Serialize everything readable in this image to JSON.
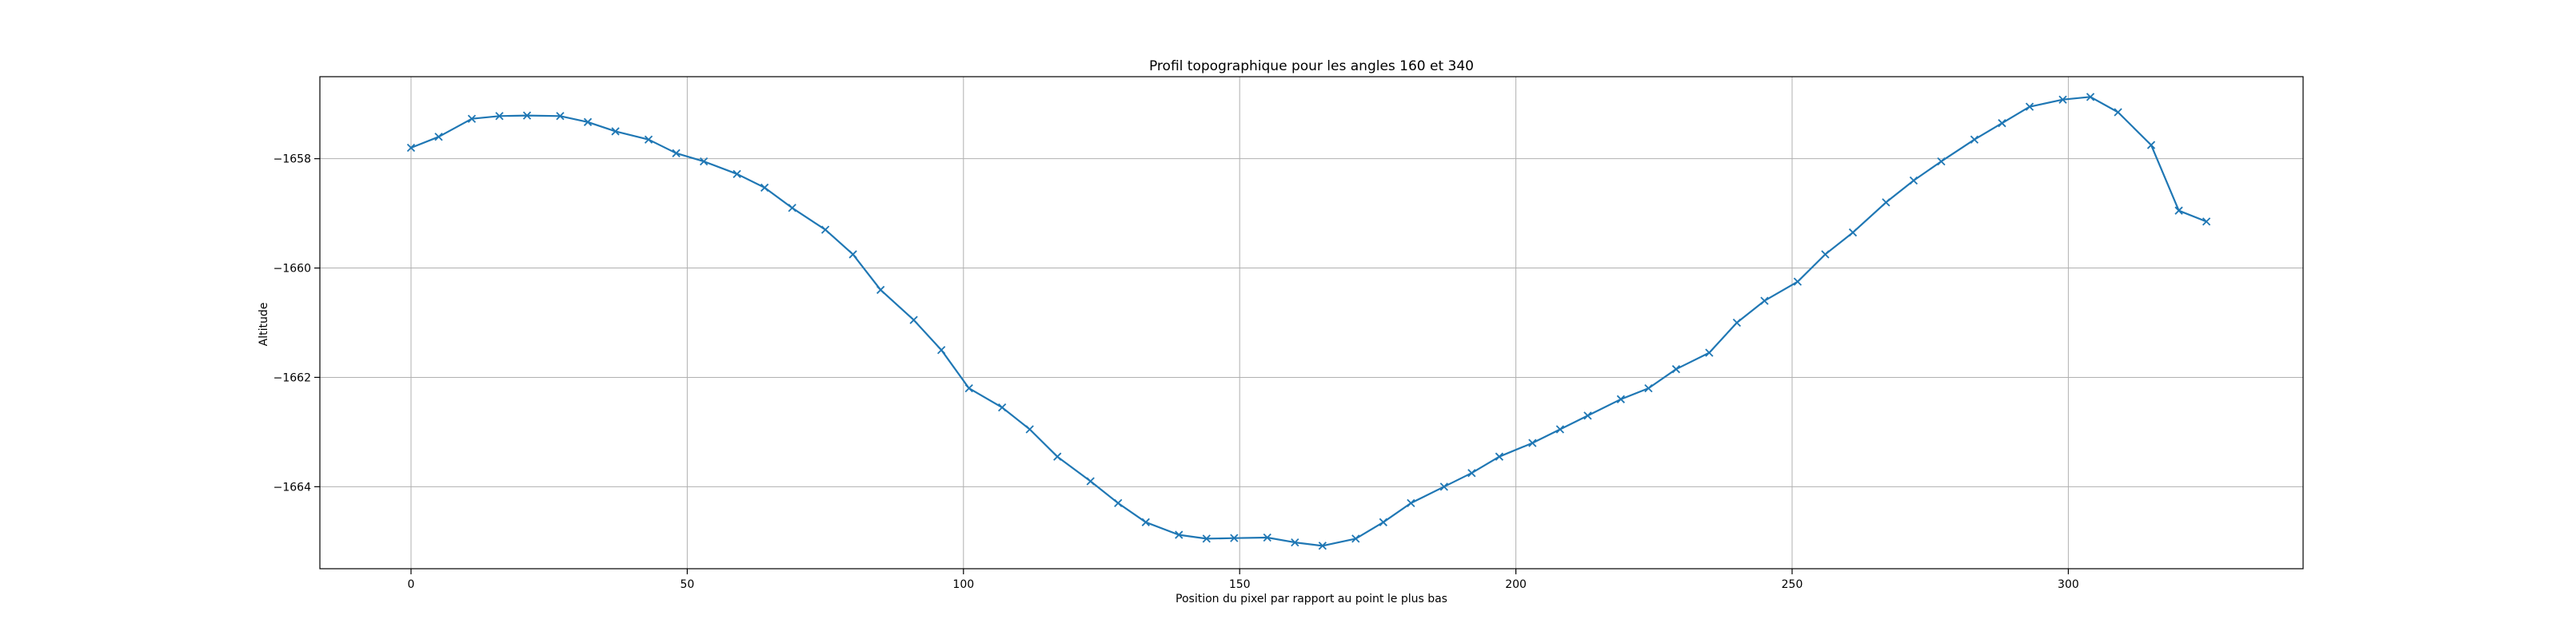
{
  "chart_data": {
    "type": "line",
    "title": "Profil topographique pour les angles 160 et 340",
    "xlabel": "Position du pixel par rapport au point le plus bas",
    "ylabel": "Altitude",
    "xlim": [
      -16.5,
      342.5
    ],
    "ylim": [
      -1665.5,
      -1656.5
    ],
    "xticks": [
      0,
      50,
      100,
      150,
      200,
      250,
      300
    ],
    "yticks": [
      -1658,
      -1660,
      -1662,
      -1664
    ],
    "grid": true,
    "marker": "x",
    "line_color": "#1f77b4",
    "series": [
      {
        "x": [
          0,
          5,
          11,
          16,
          21,
          27,
          32,
          37,
          43,
          48,
          53,
          59,
          64,
          69,
          75,
          80,
          85,
          91,
          96,
          101,
          107,
          112,
          117,
          123,
          128,
          133,
          139,
          144,
          149,
          155,
          160,
          165,
          171,
          176,
          181,
          187,
          192,
          197,
          203,
          208,
          213,
          219,
          224,
          229,
          235,
          240,
          245,
          251,
          256,
          261,
          267,
          272,
          277,
          283,
          288,
          293,
          299,
          304,
          309,
          315,
          320,
          325
        ],
        "y": [
          -1657.8,
          -1657.6,
          -1657.27,
          -1657.22,
          -1657.21,
          -1657.22,
          -1657.33,
          -1657.5,
          -1657.65,
          -1657.9,
          -1658.05,
          -1658.28,
          -1658.53,
          -1658.9,
          -1659.3,
          -1659.75,
          -1660.4,
          -1660.95,
          -1661.5,
          -1662.2,
          -1662.55,
          -1662.95,
          -1663.45,
          -1663.9,
          -1664.3,
          -1664.65,
          -1664.88,
          -1664.95,
          -1664.94,
          -1664.93,
          -1665.02,
          -1665.08,
          -1664.95,
          -1664.65,
          -1664.3,
          -1664.0,
          -1663.75,
          -1663.45,
          -1663.2,
          -1662.95,
          -1662.7,
          -1662.4,
          -1662.2,
          -1661.85,
          -1661.55,
          -1661.0,
          -1660.6,
          -1660.25,
          -1659.75,
          -1659.35,
          -1658.8,
          -1658.4,
          -1658.05,
          -1657.65,
          -1657.35,
          -1657.05,
          -1656.92,
          -1656.87,
          -1657.15,
          -1657.75,
          -1658.95,
          -1659.15
        ]
      }
    ]
  }
}
